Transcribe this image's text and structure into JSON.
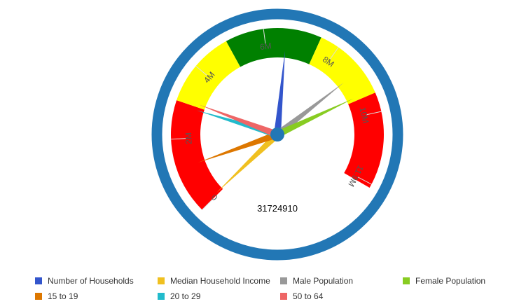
{
  "chart_data": {
    "type": "gauge",
    "scale": {
      "min": 0,
      "max": 12000000,
      "start_angle_deg": 225,
      "end_angle_deg": 480
    },
    "ticks": [
      {
        "value": 0,
        "label": "0"
      },
      {
        "value": 2000000,
        "label": "2M"
      },
      {
        "value": 4000000,
        "label": "4M"
      },
      {
        "value": 6000000,
        "label": "6M"
      },
      {
        "value": 8000000,
        "label": "8M"
      },
      {
        "value": 10000000,
        "label": "10M"
      },
      {
        "value": 11900000,
        "label": "11.9M"
      }
    ],
    "bands": [
      {
        "from": 0,
        "to": 3000000,
        "color": "#ff0000"
      },
      {
        "from": 3000000,
        "to": 5000000,
        "color": "#ffff00"
      },
      {
        "from": 5000000,
        "to": 7500000,
        "color": "#008000"
      },
      {
        "from": 7500000,
        "to": 9500000,
        "color": "#ffff00"
      },
      {
        "from": 9500000,
        "to": 12000000,
        "color": "#ff0000"
      }
    ],
    "center_value": "31724910",
    "series": [
      {
        "name": "Number of Households",
        "value": 6600000,
        "color": "#3355cc"
      },
      {
        "name": "Median Household Income",
        "value": 60000,
        "color": "#f0c020"
      },
      {
        "name": "Male Population",
        "value": 8800000,
        "color": "#999999"
      },
      {
        "name": "Female Population",
        "value": 9400000,
        "color": "#88cc22"
      },
      {
        "name": "15 to 19",
        "value": 1200000,
        "color": "#dd7700"
      },
      {
        "name": "20 to 29",
        "value": 2900000,
        "color": "#22bbcc"
      },
      {
        "name": "50 to 64",
        "value": 3100000,
        "color": "#ee6666"
      }
    ],
    "legend_position": "bottom"
  }
}
